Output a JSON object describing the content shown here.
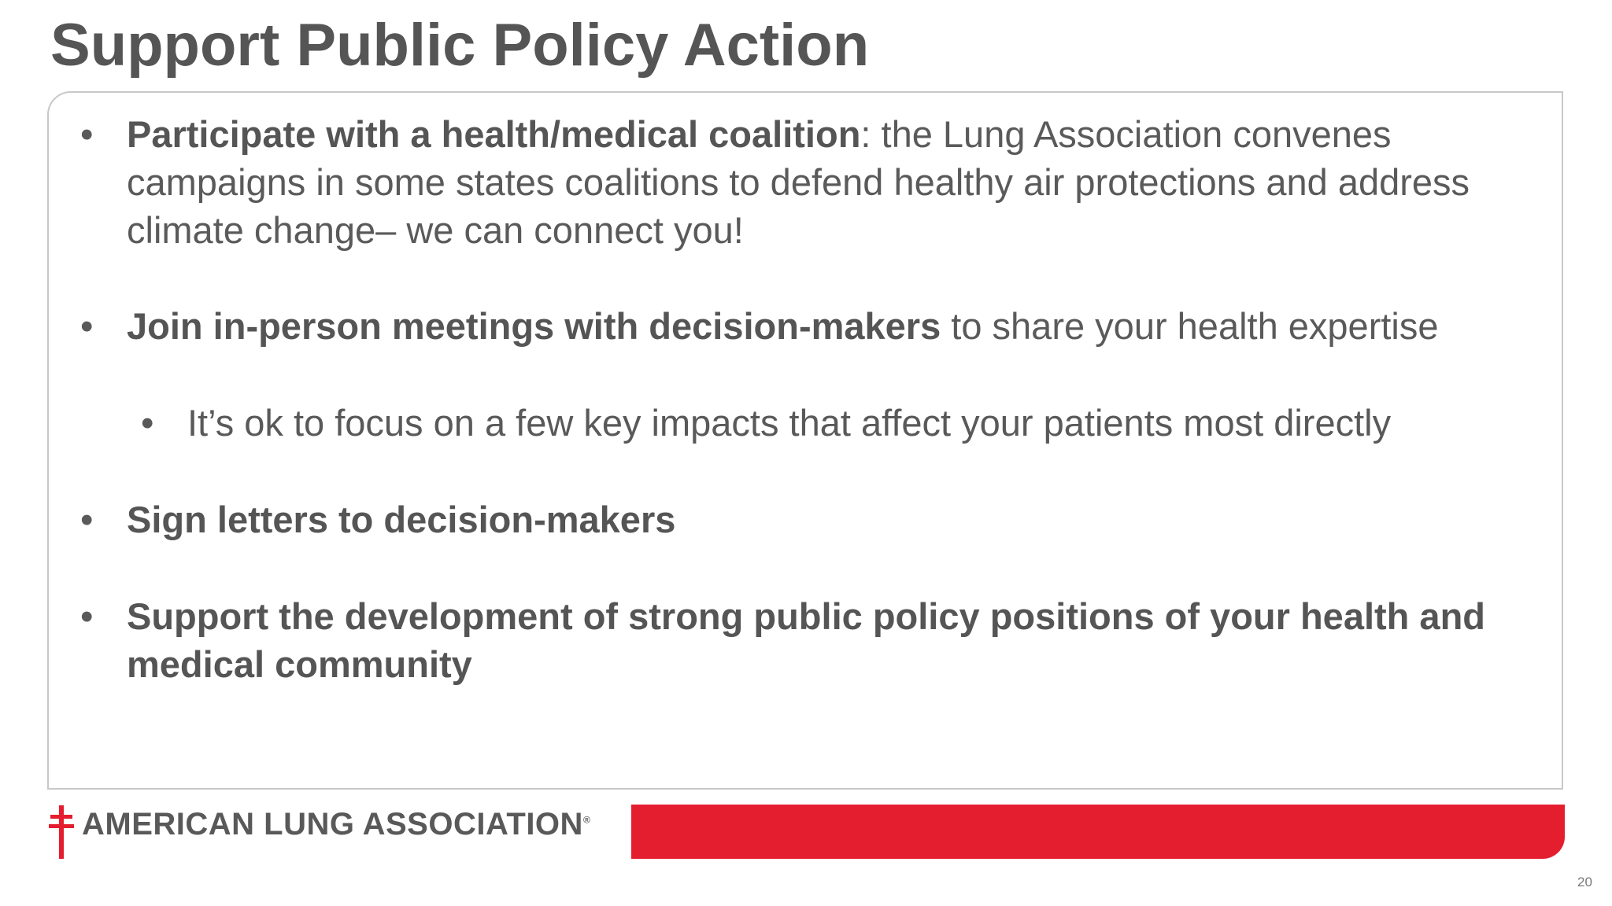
{
  "title": "Support Public Policy Action",
  "bullets": [
    {
      "bold": "Participate with a health/medical coalition",
      "text": ": the Lung Association convenes campaigns in some states coalitions to defend healthy air protections and address climate change– we can connect you!"
    },
    {
      "bold": "Join in-person meetings with decision-makers",
      "text": " to share your health expertise",
      "sub": [
        "It’s ok to focus on a few key impacts that affect your patients most directly"
      ]
    },
    {
      "bold": "Sign letters to decision-makers"
    },
    {
      "bold": "Support the development of strong public policy positions of your health and medical community"
    }
  ],
  "footer": {
    "logo": "AMERICAN LUNG ASSOCIATION",
    "registered": "®",
    "page_number": "20"
  }
}
